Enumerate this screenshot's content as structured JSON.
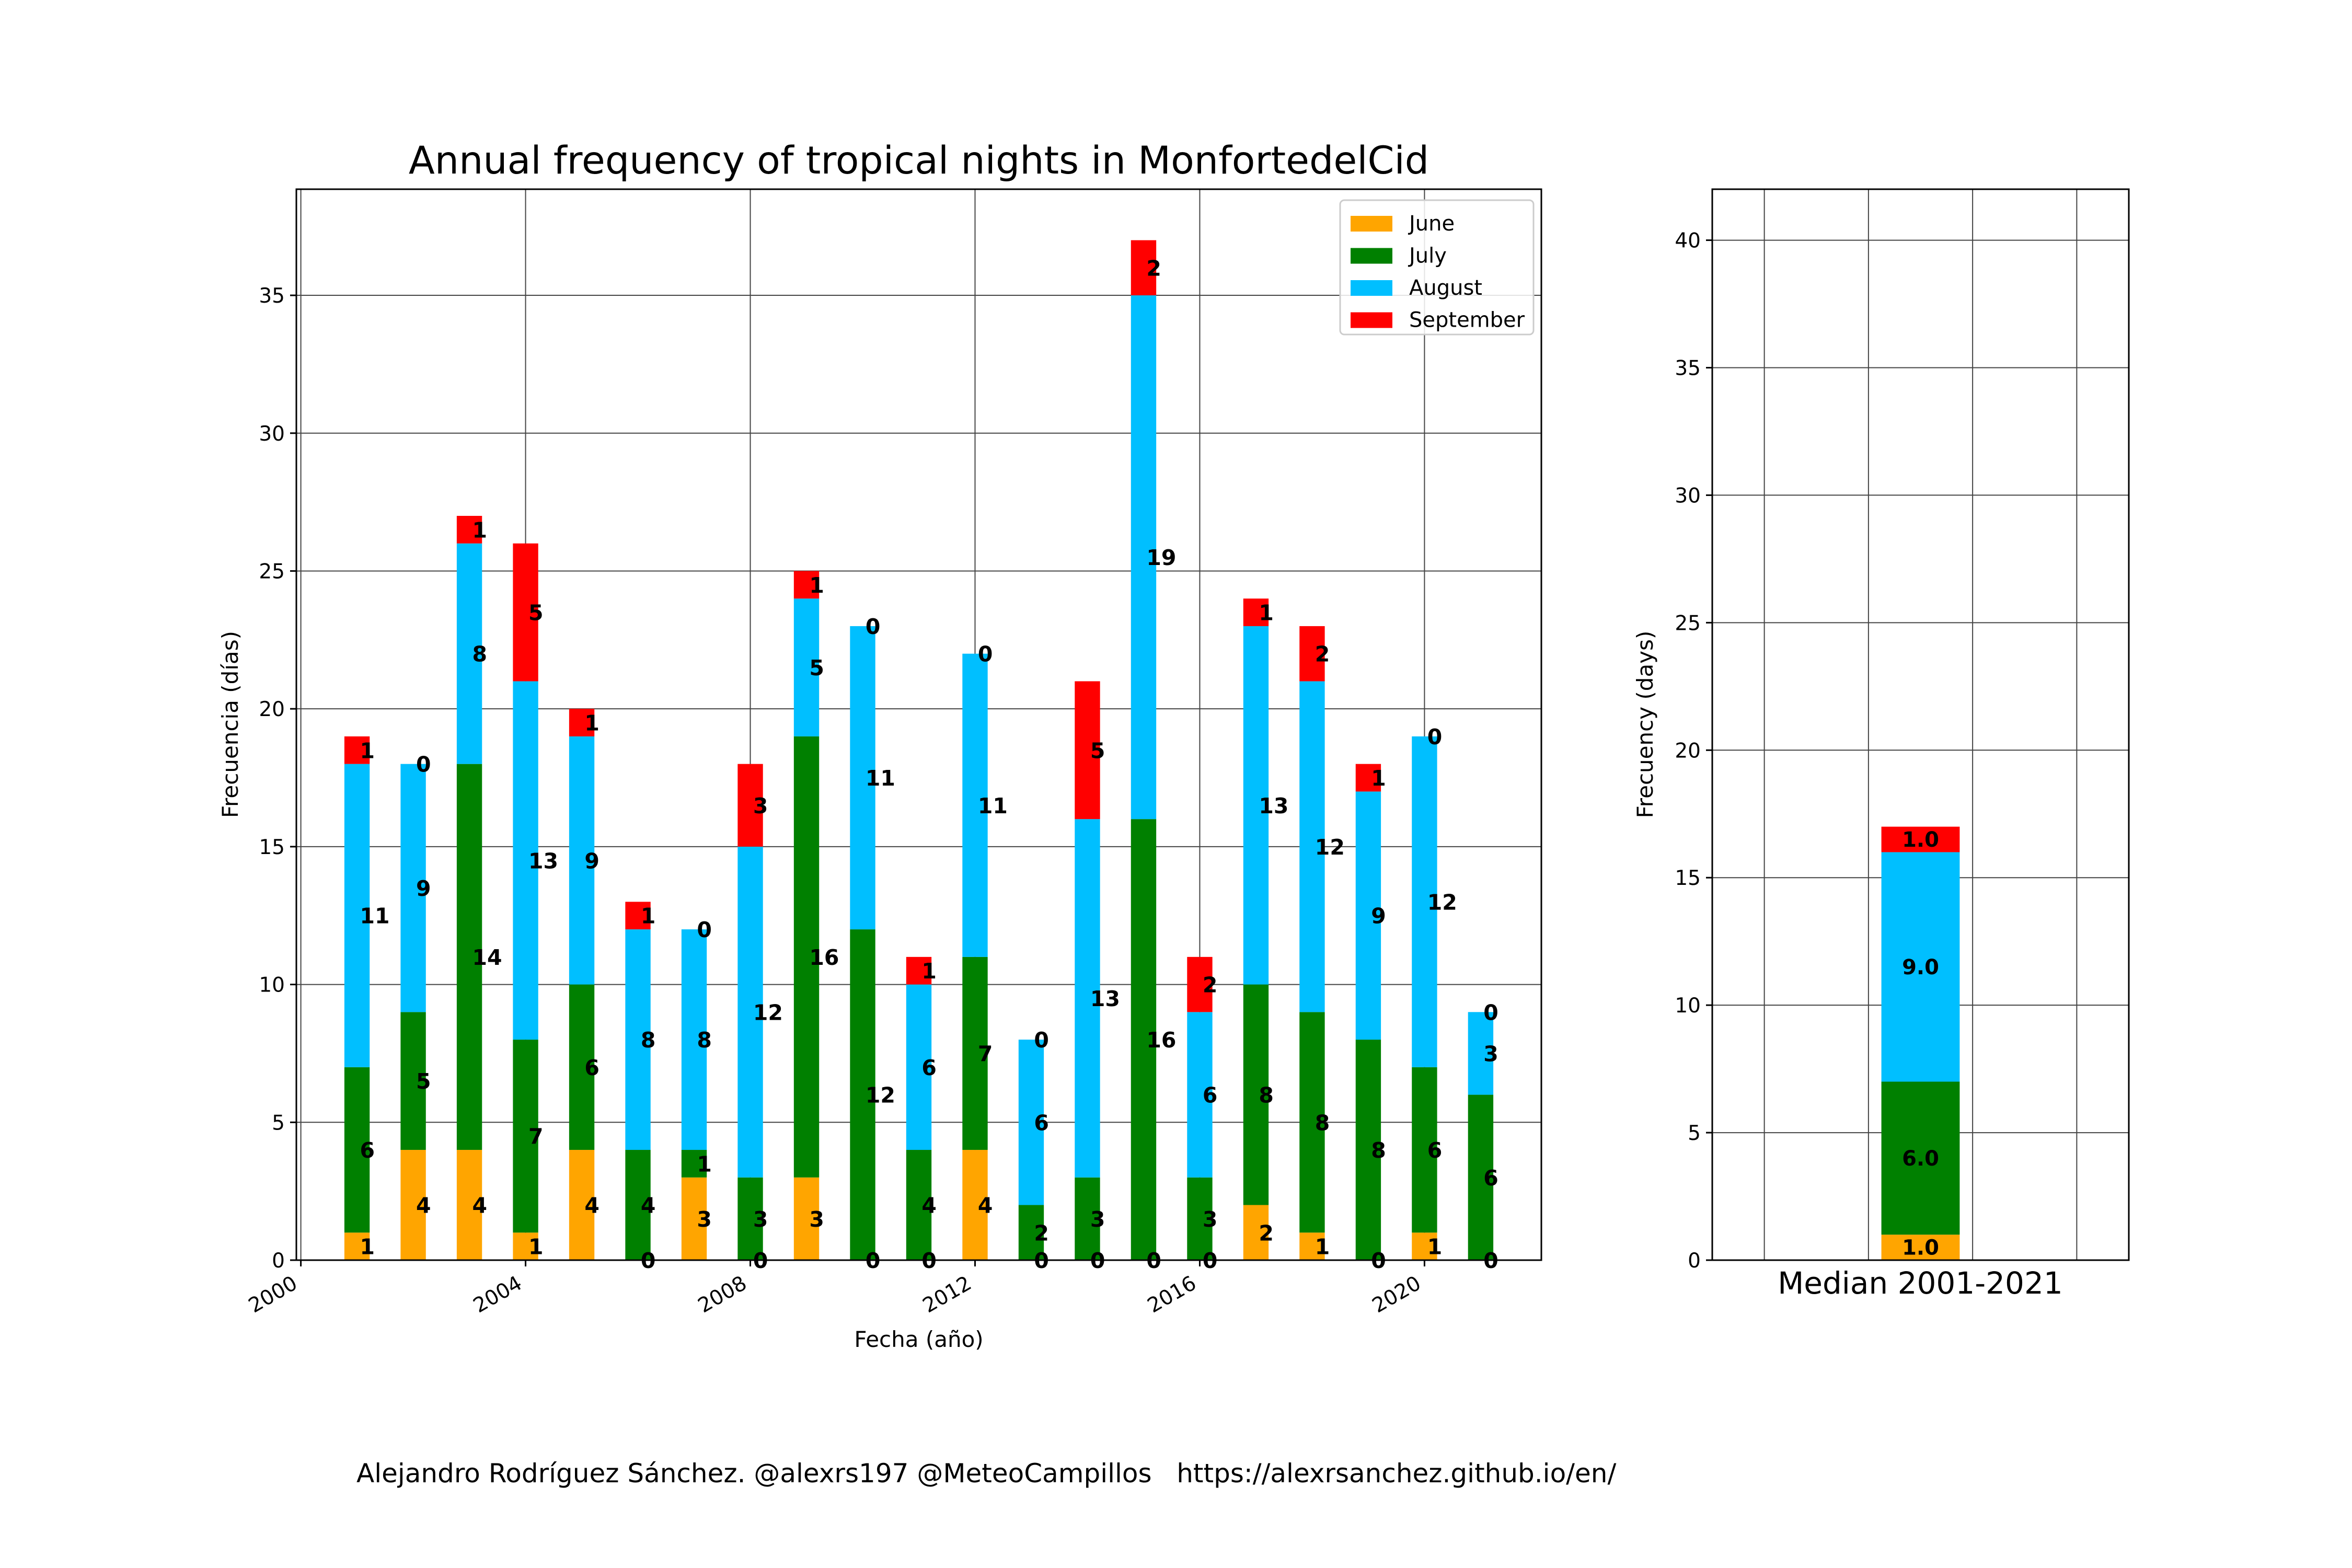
{
  "credit": "Alejandro Rodríguez Sánchez. @alexrs197 @MeteoCampillos   https://alexrsanchez.github.io/en/",
  "colors": {
    "June": "#ffa500",
    "July": "#008000",
    "August": "#00bfff",
    "September": "#ff0000"
  },
  "chart_data": [
    {
      "type": "bar",
      "stacked": true,
      "title": "Annual frequency of tropical nights in MonfortedelCid",
      "xlabel": "Fecha (año)",
      "ylabel": "Frecuencia (días)",
      "x": [
        2001,
        2002,
        2003,
        2004,
        2005,
        2006,
        2007,
        2008,
        2009,
        2010,
        2011,
        2012,
        2013,
        2014,
        2015,
        2016,
        2017,
        2018,
        2019,
        2020,
        2021
      ],
      "series": [
        {
          "name": "June",
          "values": [
            1,
            4,
            4,
            1,
            4,
            0,
            3,
            0,
            3,
            0,
            0,
            4,
            0,
            0,
            0,
            0,
            2,
            1,
            0,
            1,
            0
          ]
        },
        {
          "name": "July",
          "values": [
            6,
            5,
            14,
            7,
            6,
            4,
            1,
            3,
            16,
            12,
            4,
            7,
            2,
            3,
            16,
            3,
            8,
            8,
            8,
            6,
            6
          ]
        },
        {
          "name": "August",
          "values": [
            11,
            9,
            8,
            13,
            9,
            8,
            8,
            12,
            5,
            11,
            6,
            11,
            6,
            13,
            19,
            6,
            13,
            12,
            9,
            12,
            3
          ]
        },
        {
          "name": "September",
          "values": [
            1,
            0,
            1,
            5,
            1,
            1,
            0,
            3,
            1,
            0,
            1,
            0,
            0,
            5,
            2,
            2,
            1,
            2,
            1,
            0,
            0
          ]
        }
      ],
      "xticks": [
        "2000",
        "2004",
        "2008",
        "2012",
        "2016",
        "2020"
      ],
      "xlim": [
        1999.92,
        2022.08
      ],
      "ylim": [
        0,
        38.85
      ],
      "yticks": [
        "0",
        "5",
        "10",
        "15",
        "20",
        "25",
        "30",
        "35"
      ],
      "grid": true,
      "legend": "top-right"
    },
    {
      "type": "bar",
      "stacked": true,
      "xlabel": "Median 2001-2021",
      "ylabel": "Frecuency (days)",
      "series": [
        {
          "name": "June",
          "value": 1.0,
          "label": "1.0"
        },
        {
          "name": "July",
          "value": 6.0,
          "label": "6.0"
        },
        {
          "name": "August",
          "value": 9.0,
          "label": "9.0"
        },
        {
          "name": "September",
          "value": 1.0,
          "label": "1.0"
        }
      ],
      "ylim": [
        0,
        42
      ],
      "yticks": [
        "0",
        "5",
        "10",
        "15",
        "20",
        "25",
        "30",
        "35",
        "40"
      ],
      "grid": true
    }
  ]
}
